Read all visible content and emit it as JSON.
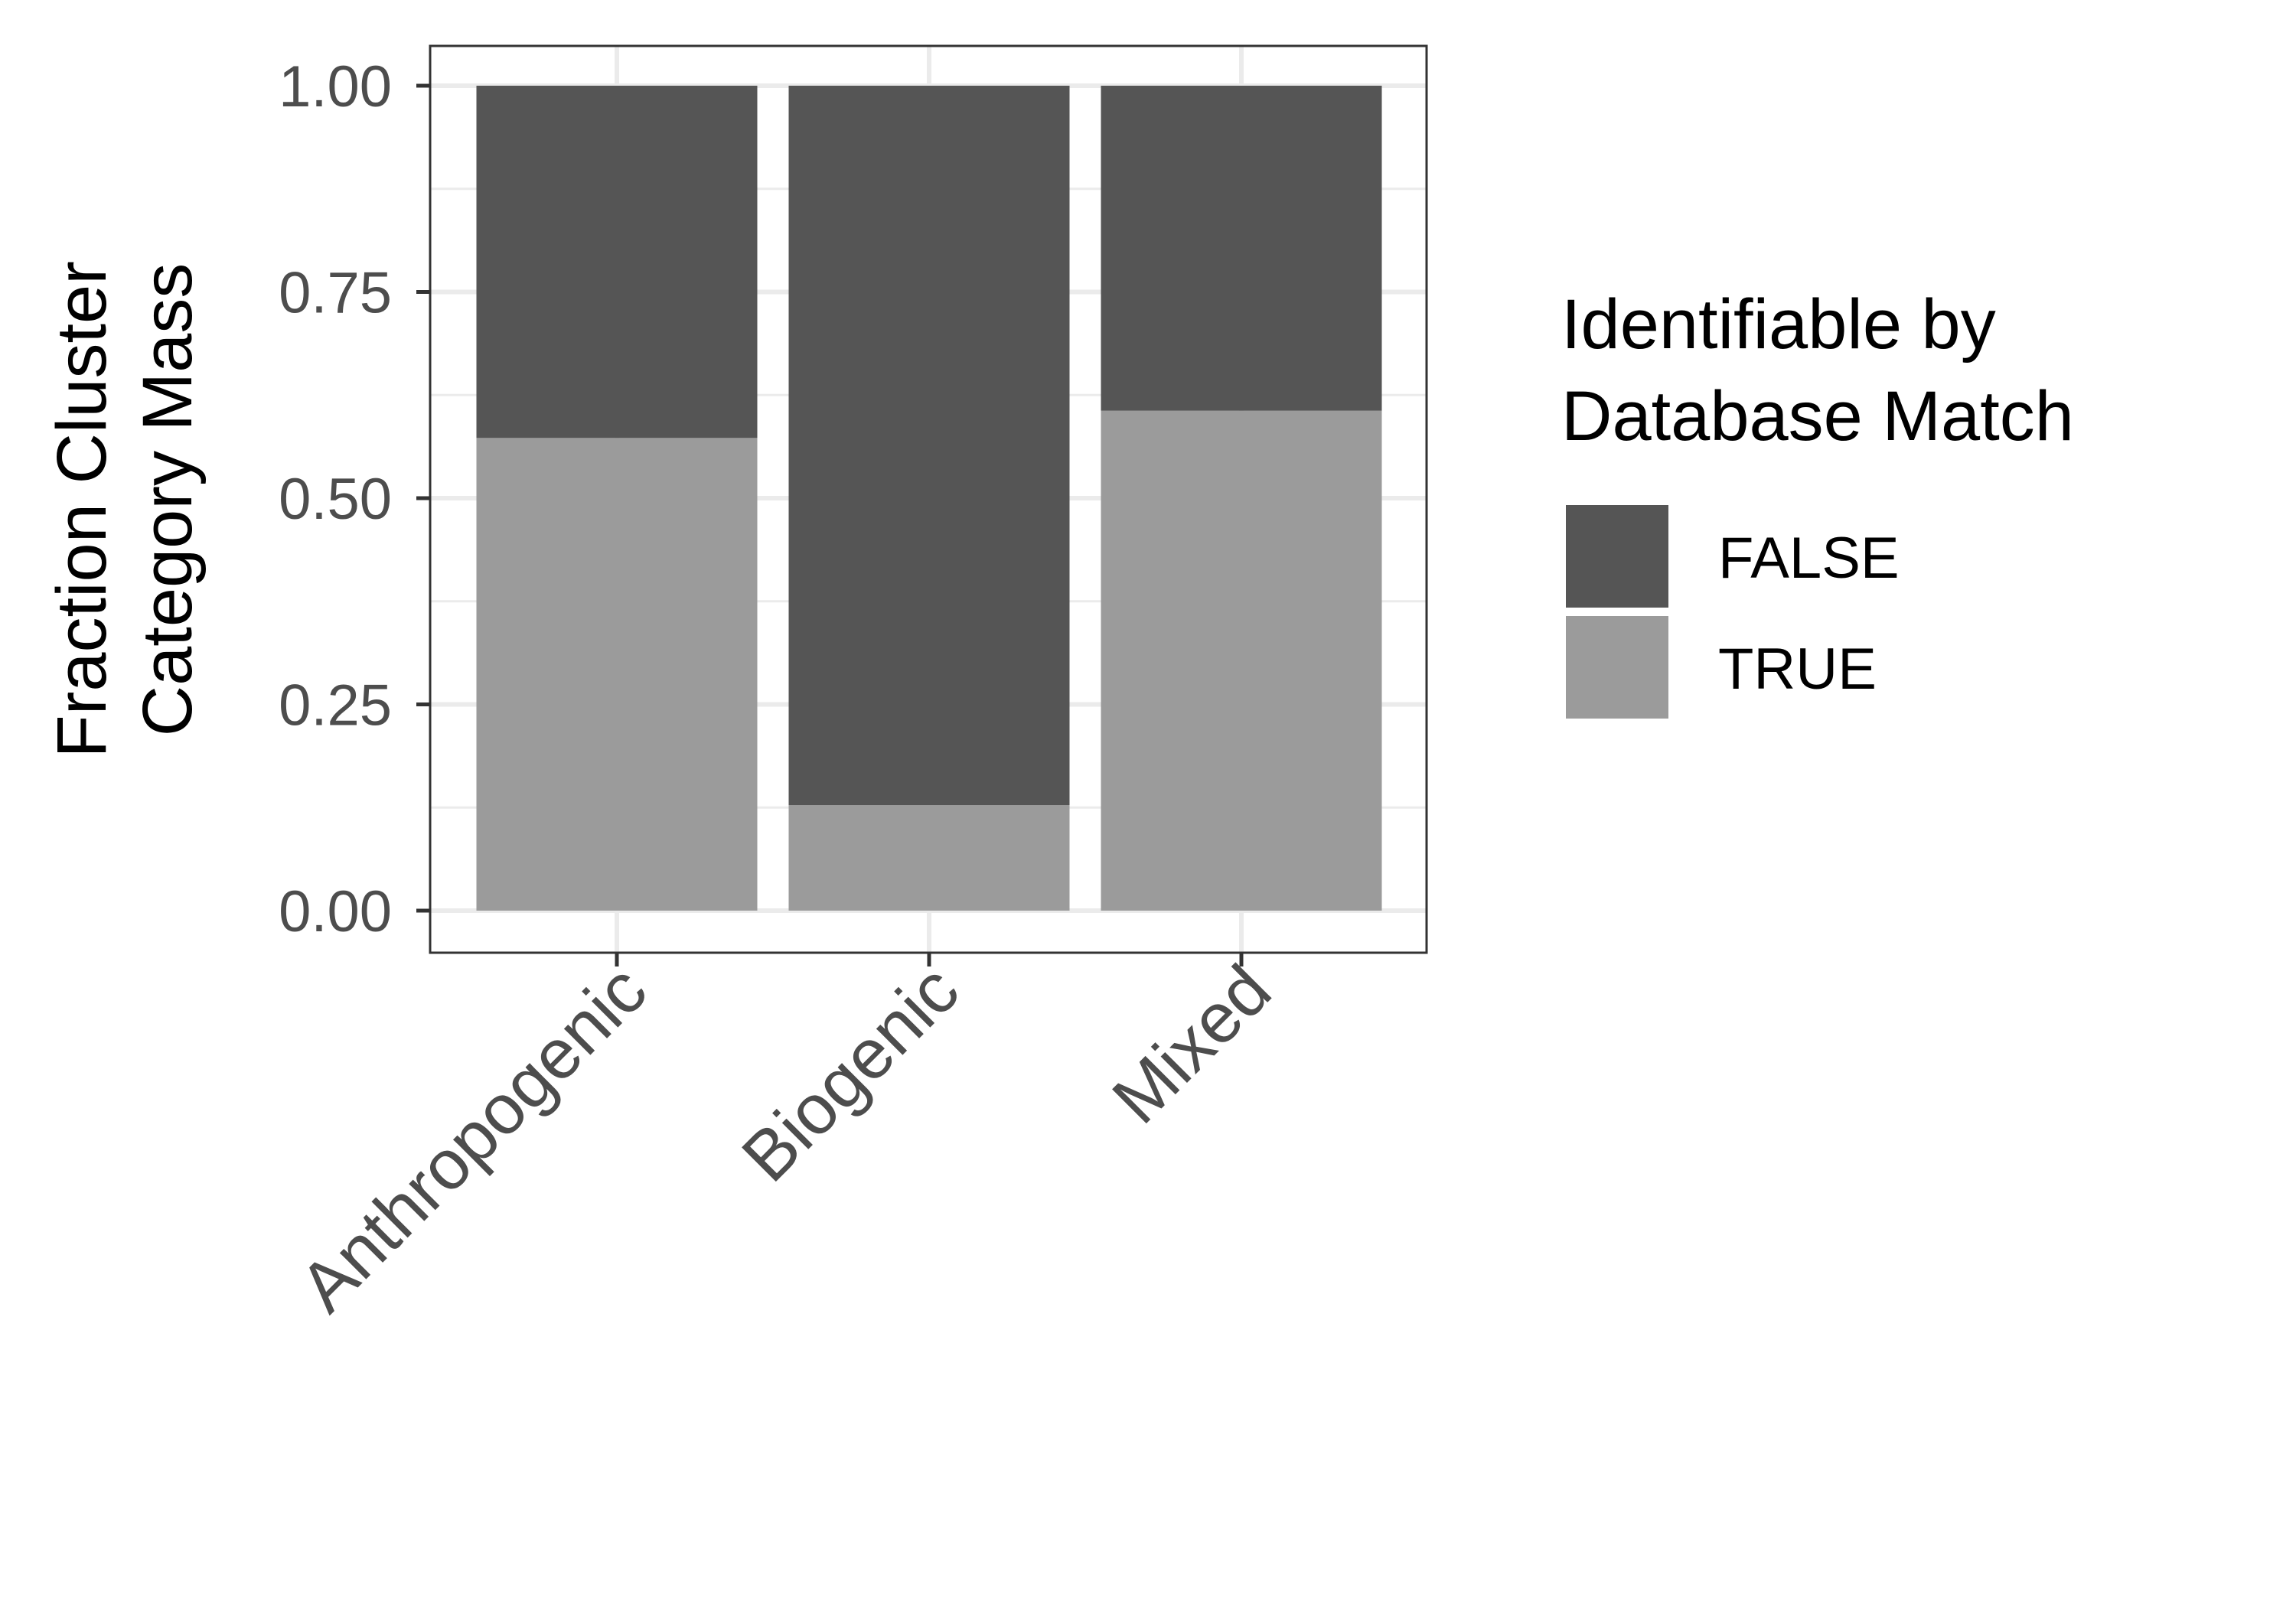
{
  "chart_data": {
    "type": "bar",
    "stacked": true,
    "categories": [
      "Anthropogenic",
      "Biogenic",
      "Mixed"
    ],
    "series": [
      {
        "name": "FALSE",
        "color": "#555555",
        "values": [
          0.427,
          0.872,
          0.394
        ]
      },
      {
        "name": "TRUE",
        "color": "#9b9b9b",
        "values": [
          0.573,
          0.128,
          0.606
        ]
      }
    ],
    "ylabel_lines": [
      "Fraction Cluster",
      "Category Mass"
    ],
    "xlabel": "",
    "ylim": [
      0,
      1
    ],
    "yticks": [
      0,
      0.25,
      0.5,
      0.75,
      1
    ],
    "ytick_labels": [
      "0.00",
      "0.25",
      "0.50",
      "0.75",
      "1.00"
    ],
    "grid": true,
    "legend": {
      "title_lines": [
        "Identifiable by",
        "Database Match"
      ],
      "position": "right"
    },
    "stack_order": [
      "TRUE",
      "FALSE"
    ]
  }
}
